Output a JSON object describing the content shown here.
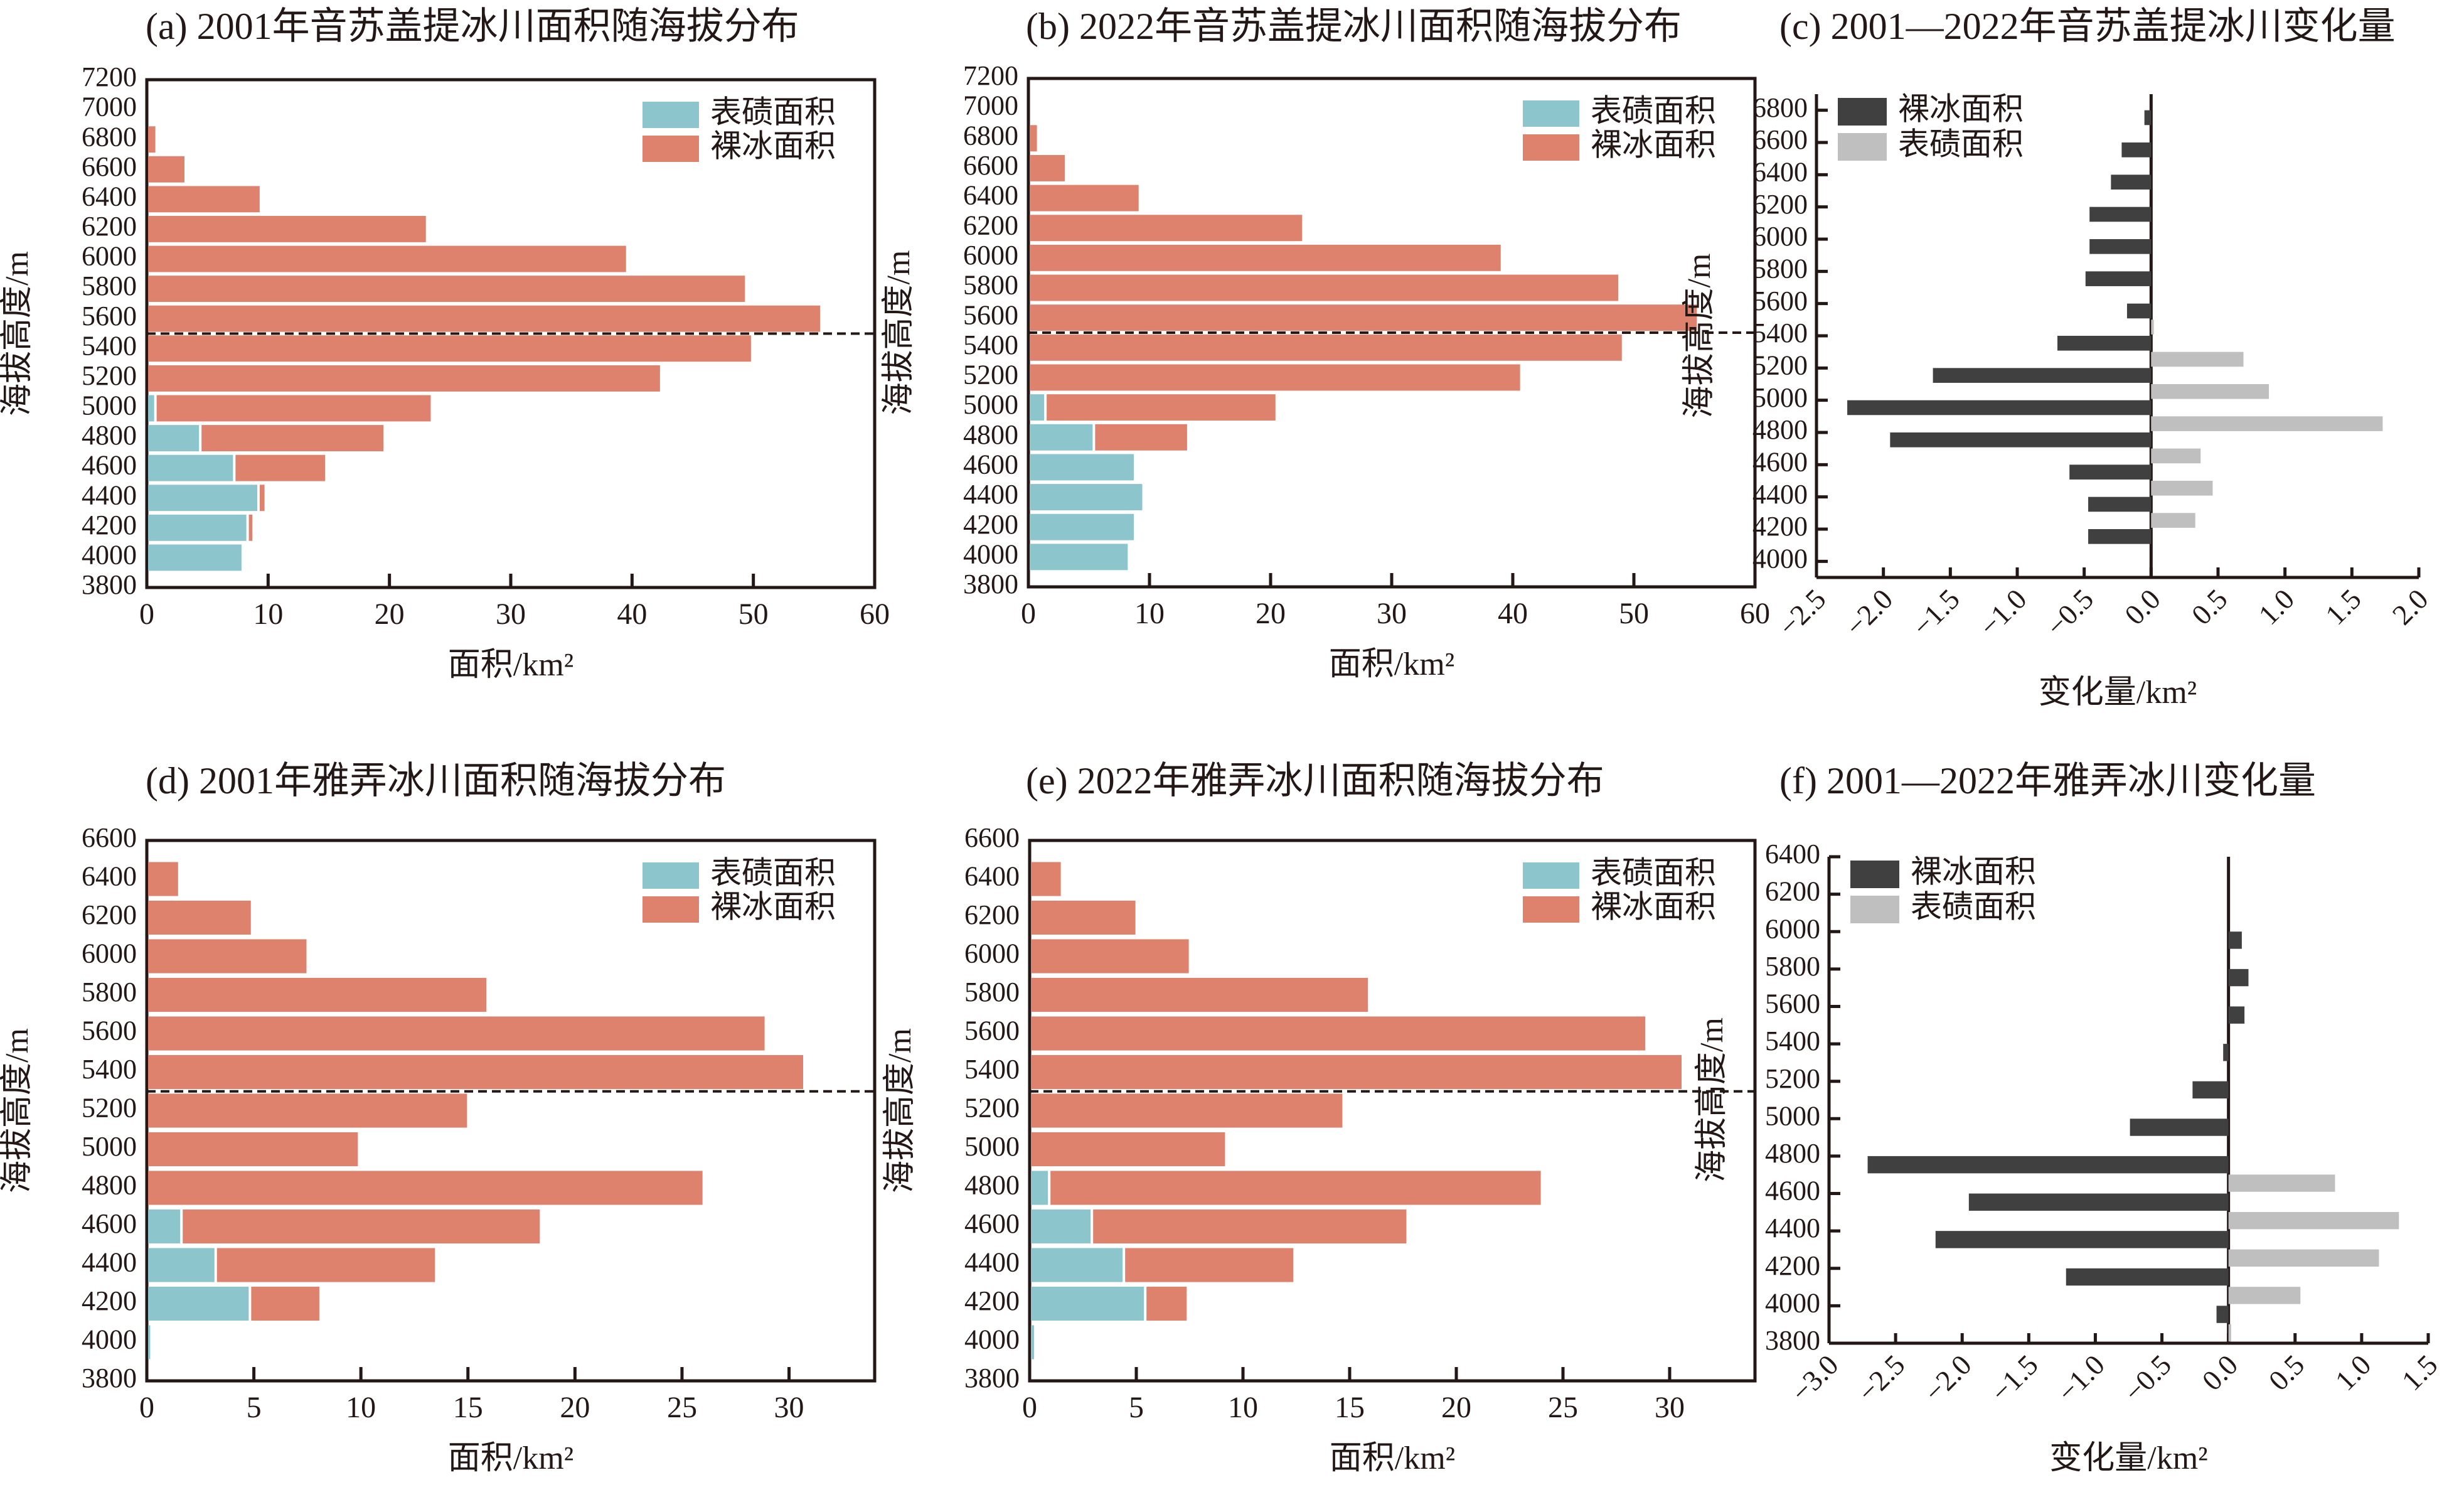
{
  "figure": {
    "colors": {
      "debris": "#8CC5CC",
      "clean_ice": "#DE826D",
      "change_clean_ice": "#404040",
      "change_debris": "#BFBFBF",
      "axis": "#231815"
    }
  },
  "chart_data": [
    {
      "id": "a",
      "type": "bar",
      "orientation": "horizontal",
      "stacked": true,
      "title": "(a) 2001年音苏盖提冰川面积随海拔分布",
      "xlabel": "面积/km²",
      "ylabel": "海拔高度/m",
      "xlim": [
        0,
        60
      ],
      "xticks": [
        "0",
        "10",
        "20",
        "30",
        "40",
        "50",
        "60"
      ],
      "ylim": [
        3800,
        7200
      ],
      "yticks": [
        "3800",
        "4000",
        "4200",
        "4400",
        "4600",
        "4800",
        "5000",
        "5200",
        "5400",
        "5600",
        "5800",
        "6000",
        "6200",
        "6400",
        "6600",
        "6800",
        "7000",
        "7200"
      ],
      "legend": {
        "position": "top-right",
        "entries": [
          "表碛面积",
          "裸冰面积"
        ]
      },
      "reference_line_elevation": 5500,
      "categories": [
        4000,
        4200,
        4400,
        4600,
        4800,
        5000,
        5200,
        5400,
        5600,
        5800,
        6000,
        6200,
        6400,
        6600,
        6800
      ],
      "series": [
        {
          "name": "表碛面积",
          "color_key": "debris",
          "values": [
            7.7,
            8.1,
            9.0,
            7.0,
            4.2,
            0.5,
            0,
            0,
            0,
            0,
            0,
            0,
            0,
            0,
            0
          ]
        },
        {
          "name": "裸冰面积",
          "color_key": "clean_ice",
          "values": [
            0,
            0.5,
            0.6,
            7.6,
            15.2,
            22.8,
            42.2,
            49.7,
            55.4,
            49.2,
            39.4,
            22.9,
            9.2,
            3.0,
            0.6
          ]
        }
      ]
    },
    {
      "id": "b",
      "type": "bar",
      "orientation": "horizontal",
      "stacked": true,
      "title": "(b) 2022年音苏盖提冰川面积随海拔分布",
      "xlabel": "面积/km²",
      "ylabel": "海拔高度/m",
      "xlim": [
        0,
        60
      ],
      "xticks": [
        "0",
        "10",
        "20",
        "30",
        "40",
        "50",
        "60"
      ],
      "ylim": [
        3800,
        7200
      ],
      "yticks": [
        "3800",
        "4000",
        "4200",
        "4400",
        "4600",
        "4800",
        "5000",
        "5200",
        "5400",
        "5600",
        "5800",
        "6000",
        "6200",
        "6400",
        "6600",
        "6800",
        "7000",
        "7200"
      ],
      "legend": {
        "position": "top-right",
        "entries": [
          "表碛面积",
          "裸冰面积"
        ]
      },
      "reference_line_elevation": 5500,
      "categories": [
        4000,
        4200,
        4400,
        4600,
        4800,
        5000,
        5200,
        5400,
        5600,
        5800,
        6000,
        6200,
        6400,
        6600,
        6800
      ],
      "series": [
        {
          "name": "表碛面积",
          "color_key": "debris",
          "values": [
            8.1,
            8.6,
            9.3,
            8.6,
            5.2,
            1.2,
            0,
            0,
            0,
            0,
            0,
            0,
            0,
            0,
            0
          ]
        },
        {
          "name": "裸冰面积",
          "color_key": "clean_ice",
          "values": [
            0,
            0,
            0,
            0,
            7.8,
            19.1,
            40.5,
            48.9,
            55.1,
            48.6,
            38.9,
            22.5,
            9.0,
            2.9,
            0.6
          ]
        }
      ]
    },
    {
      "id": "c",
      "type": "bar",
      "orientation": "horizontal",
      "stacked": false,
      "title": "(c) 2001—2022年音苏盖提冰川变化量",
      "xlabel": "变化量/km²",
      "ylabel": "海拔高度/m",
      "xlim": [
        -2.5,
        2.0
      ],
      "xticks": [
        "−2.5",
        "−2.0",
        "−1.5",
        "−1.0",
        "−0.5",
        "0.0",
        "0.5",
        "1.0",
        "1.5",
        "2.0"
      ],
      "ylim": [
        3900,
        6900
      ],
      "yticks": [
        "4000",
        "4200",
        "4400",
        "4600",
        "4800",
        "5000",
        "5200",
        "5400",
        "5600",
        "5800",
        "6000",
        "6200",
        "6400",
        "6600",
        "6800"
      ],
      "legend": {
        "position": "top-left",
        "entries": [
          "裸冰面积",
          "表碛面积"
        ]
      },
      "categories": [
        4200,
        4400,
        4600,
        4800,
        5000,
        5200,
        5400,
        5600,
        5800,
        6000,
        6200,
        6400,
        6600,
        6800
      ],
      "series": [
        {
          "name": "裸冰面积",
          "color_key": "change_clean_ice",
          "values": [
            -0.47,
            -0.47,
            -0.61,
            -1.95,
            -2.27,
            -1.63,
            -0.7,
            -0.18,
            -0.49,
            -0.46,
            -0.46,
            -0.3,
            -0.22,
            -0.05
          ]
        },
        {
          "name": "表碛面积",
          "color_key": "change_debris",
          "values": [
            0,
            0.33,
            0.46,
            0.37,
            1.73,
            0.88,
            0.69,
            0.02,
            0,
            0,
            0,
            0,
            0,
            0
          ]
        }
      ]
    },
    {
      "id": "d",
      "type": "bar",
      "orientation": "horizontal",
      "stacked": true,
      "title": "(d) 2001年雅弄冰川面积随海拔分布",
      "xlabel": "面积/km²",
      "ylabel": "海拔高度/m",
      "xlim": [
        0,
        34
      ],
      "xticks": [
        "0",
        "5",
        "10",
        "15",
        "20",
        "25",
        "30"
      ],
      "ylim": [
        3800,
        6600
      ],
      "yticks": [
        "3800",
        "4000",
        "4200",
        "4400",
        "4600",
        "4800",
        "5000",
        "5200",
        "5400",
        "5600",
        "5800",
        "6000",
        "6200",
        "6400",
        "6600"
      ],
      "legend": {
        "position": "top-right",
        "entries": [
          "表碛面积",
          "裸冰面积"
        ]
      },
      "reference_line_elevation": 5300,
      "categories": [
        4000,
        4200,
        4400,
        4600,
        4800,
        5000,
        5200,
        5400,
        5600,
        5800,
        6000,
        6200,
        6400
      ],
      "series": [
        {
          "name": "表碛面积",
          "color_key": "debris",
          "values": [
            0.1,
            4.7,
            3.1,
            1.5,
            0,
            0,
            0,
            0,
            0,
            0,
            0,
            0,
            0
          ]
        },
        {
          "name": "裸冰面积",
          "color_key": "clean_ice",
          "values": [
            0,
            3.3,
            10.3,
            16.8,
            25.9,
            9.8,
            14.9,
            30.6,
            28.8,
            15.8,
            7.4,
            4.8,
            1.4
          ]
        }
      ]
    },
    {
      "id": "e",
      "type": "bar",
      "orientation": "horizontal",
      "stacked": true,
      "title": "(e) 2022年雅弄冰川面积随海拔分布",
      "xlabel": "面积/km²",
      "ylabel": "海拔高度/m",
      "xlim": [
        0,
        34
      ],
      "xticks": [
        "0",
        "5",
        "10",
        "15",
        "20",
        "25",
        "30"
      ],
      "ylim": [
        3800,
        6600
      ],
      "yticks": [
        "3800",
        "4000",
        "4200",
        "4400",
        "4600",
        "4800",
        "5000",
        "5200",
        "5400",
        "5600",
        "5800",
        "6000",
        "6200",
        "6400",
        "6600"
      ],
      "legend": {
        "position": "top-right",
        "entries": [
          "表碛面积",
          "裸冰面积"
        ]
      },
      "reference_line_elevation": 5300,
      "categories": [
        4000,
        4200,
        4400,
        4600,
        4800,
        5000,
        5200,
        5400,
        5600,
        5800,
        6000,
        6200,
        6400
      ],
      "series": [
        {
          "name": "表碛面积",
          "color_key": "debris",
          "values": [
            0.15,
            5.3,
            4.3,
            2.8,
            0.8,
            0,
            0,
            0,
            0,
            0,
            0,
            0,
            0
          ]
        },
        {
          "name": "裸冰面积",
          "color_key": "clean_ice",
          "values": [
            0,
            2.0,
            8.0,
            14.8,
            23.1,
            9.1,
            14.6,
            30.5,
            28.8,
            15.8,
            7.4,
            4.9,
            1.4
          ]
        }
      ]
    },
    {
      "id": "f",
      "type": "bar",
      "orientation": "horizontal",
      "stacked": false,
      "title": "(f) 2001—2022年雅弄冰川变化量",
      "xlabel": "变化量/km²",
      "ylabel": "海拔高度/m",
      "xlim": [
        -3.0,
        1.5
      ],
      "xticks": [
        "−3.0",
        "−2.5",
        "−2.0",
        "−1.5",
        "−1.0",
        "−0.5",
        "0.0",
        "0.5",
        "1.0",
        "1.5"
      ],
      "ylim": [
        3800,
        6400
      ],
      "yticks": [
        "3800",
        "4000",
        "4200",
        "4400",
        "4600",
        "4800",
        "5000",
        "5200",
        "5400",
        "5600",
        "5800",
        "6000",
        "6200",
        "6400"
      ],
      "legend": {
        "position": "top-left",
        "entries": [
          "裸冰面积",
          "表碛面积"
        ]
      },
      "categories": [
        4000,
        4200,
        4400,
        4600,
        4800,
        5000,
        5200,
        5400,
        5600,
        5800,
        6000
      ],
      "series": [
        {
          "name": "裸冰面积",
          "color_key": "change_clean_ice",
          "values": [
            -0.09,
            -1.22,
            -2.2,
            -1.95,
            -2.71,
            -0.74,
            -0.27,
            -0.04,
            0.12,
            0.15,
            0.1
          ]
        },
        {
          "name": "表碛面积",
          "color_key": "change_debris",
          "values": [
            0.02,
            0.54,
            1.13,
            1.28,
            0.8,
            0,
            0,
            0,
            0,
            0,
            0
          ]
        }
      ]
    }
  ]
}
